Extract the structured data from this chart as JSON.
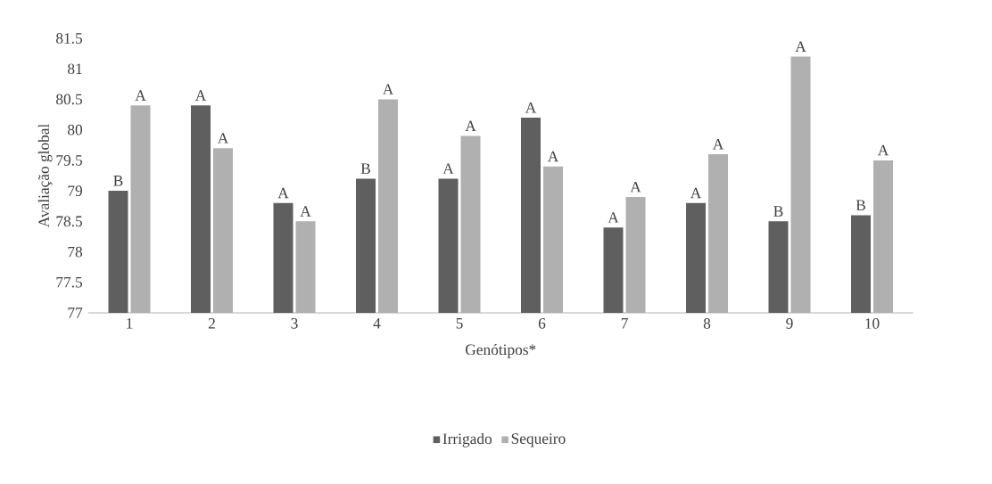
{
  "chart_data": {
    "type": "bar",
    "xlabel": "Genótipos*",
    "ylabel": "Avaliação  global",
    "categories": [
      "1",
      "2",
      "3",
      "4",
      "5",
      "6",
      "7",
      "8",
      "9",
      "10"
    ],
    "series": [
      {
        "name": "Irrigado",
        "color": "#5f5f5f",
        "values": [
          79.0,
          80.4,
          78.8,
          79.2,
          79.2,
          80.2,
          78.4,
          78.8,
          78.5,
          78.6
        ],
        "value_labels": [
          "B",
          "A",
          "A",
          "B",
          "A",
          "A",
          "A",
          "A",
          "B",
          "B"
        ]
      },
      {
        "name": "Sequeiro",
        "color": "#b0b0b0",
        "values": [
          80.4,
          79.7,
          78.5,
          80.5,
          79.9,
          79.4,
          78.9,
          79.6,
          81.2,
          79.5
        ],
        "value_labels": [
          "A",
          "A",
          "A",
          "A",
          "A",
          "A",
          "A",
          "A",
          "A",
          "A"
        ]
      }
    ],
    "ylim": [
      77,
      81.5
    ],
    "yticks": [
      77,
      77.5,
      78,
      78.5,
      79,
      79.5,
      80,
      80.5,
      81,
      81.5
    ],
    "grid": false,
    "legend": "bottom"
  }
}
